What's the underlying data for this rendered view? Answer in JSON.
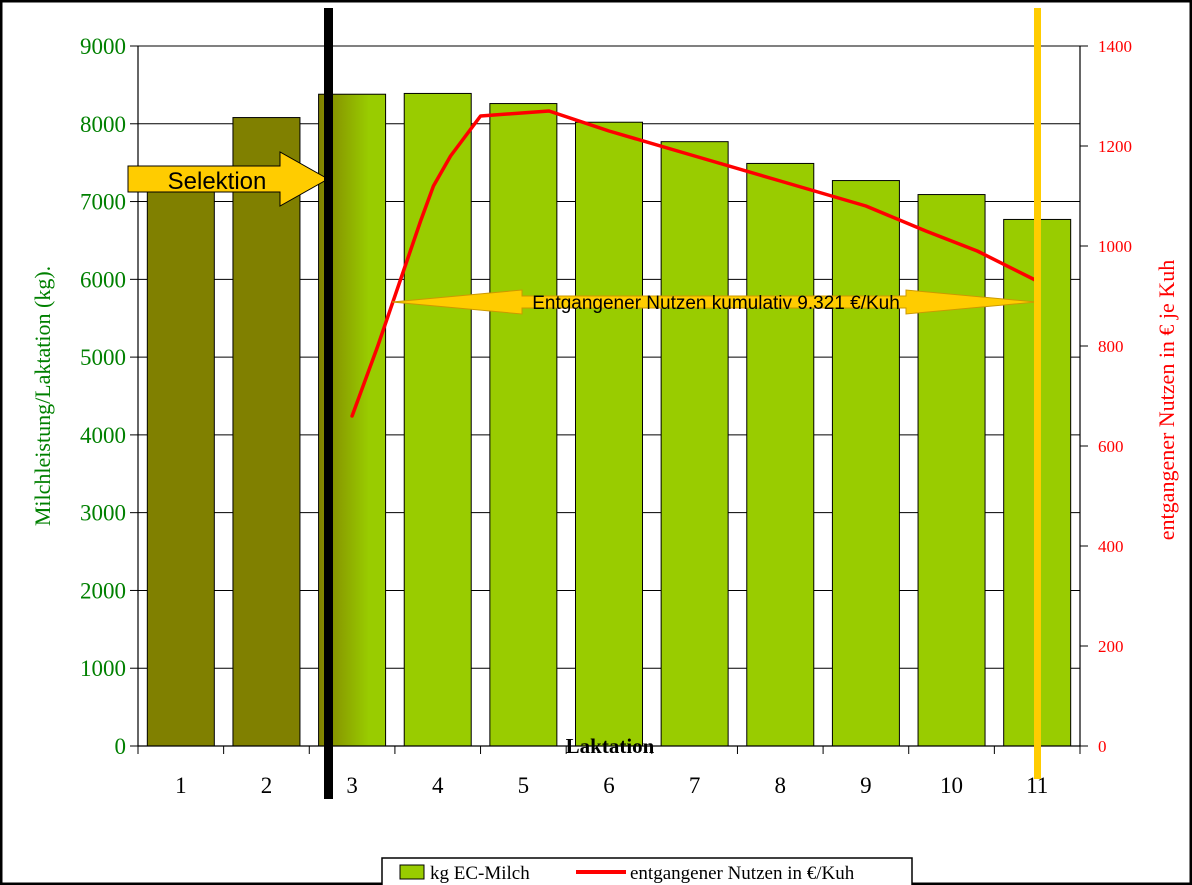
{
  "colors": {
    "bar_main": "#99CC00",
    "bar_selected": "#808000",
    "line": "#FF0000",
    "left_axis_text": "#008000",
    "right_axis_text": "#FF0000",
    "arrow": "#FFCC00",
    "selection_line": "#000000",
    "end_line": "#FFCC00"
  },
  "chart_data": {
    "type": "bar",
    "categories": [
      "1",
      "2",
      "3",
      "4",
      "5",
      "6",
      "7",
      "8",
      "9",
      "10",
      "11"
    ],
    "xlabel": "Laktation",
    "ylabel": "Milchleistung/Laktation (kg).",
    "y2label": "entgangener Nutzen in € je Kuh",
    "ylim": [
      0,
      9000
    ],
    "y_ticks": [
      "0",
      "1000",
      "2000",
      "3000",
      "4000",
      "5000",
      "6000",
      "7000",
      "8000",
      "9000"
    ],
    "y2lim": [
      0,
      1400
    ],
    "y2_ticks": [
      "0",
      "200",
      "400",
      "600",
      "800",
      "1000",
      "1200",
      "1400"
    ],
    "grid": "horizontal",
    "legend_position": "bottom",
    "series": [
      {
        "name": "kg EC-Milch",
        "type": "bar",
        "axis": "left",
        "values": [
          7170,
          8080,
          8380,
          8390,
          8260,
          8020,
          7770,
          7490,
          7270,
          7090,
          6770
        ]
      },
      {
        "name": "entgangener Nutzen in €/Kuh",
        "type": "line",
        "axis": "right",
        "x": [
          3,
          3.3,
          3.6,
          3.8,
          3.95,
          4.15,
          4.5,
          5.3,
          6,
          7,
          8,
          9,
          9.7,
          10.3,
          11
        ],
        "values": [
          660,
          800,
          950,
          1050,
          1120,
          1180,
          1260,
          1270,
          1230,
          1180,
          1130,
          1080,
          1030,
          990,
          930
        ]
      }
    ],
    "annotations": {
      "selection_label": "Selektion",
      "cumulative_label": "Entgangener Nutzen kumulativ 9.321 €/Kuh"
    }
  }
}
